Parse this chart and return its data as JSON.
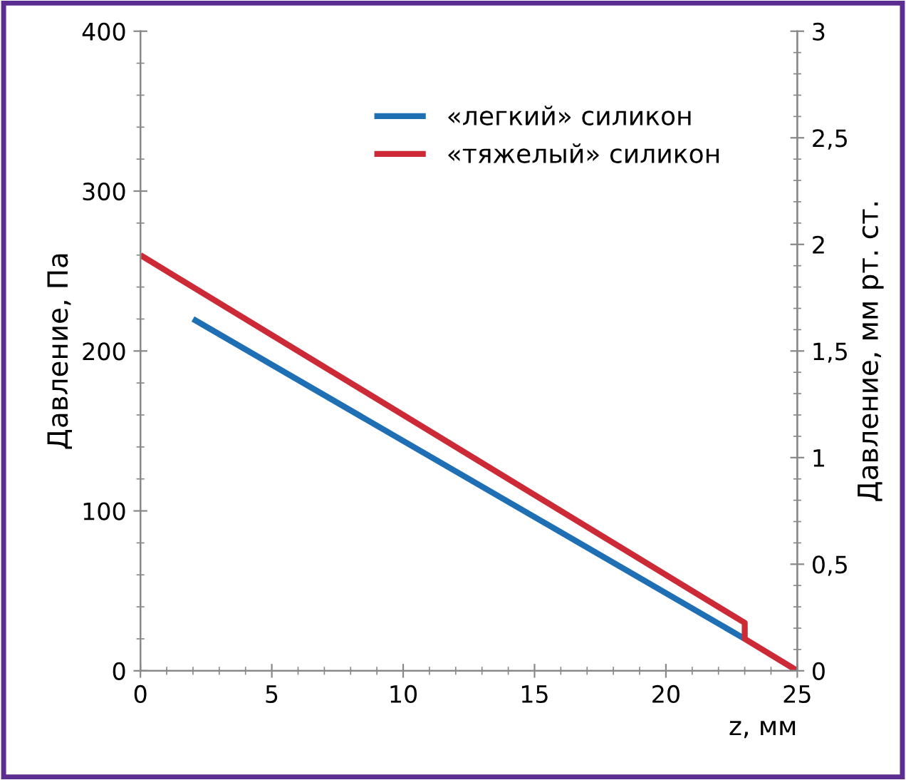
{
  "chart_data": {
    "type": "line",
    "xlabel": "z, мм",
    "ylabel": "Давление, Па",
    "y2label": "Давление, мм рт. ст.",
    "xlim": [
      0,
      25
    ],
    "xticks": [
      0,
      5,
      10,
      15,
      20,
      25
    ],
    "ylim": [
      0,
      400
    ],
    "yticks": [
      0,
      100,
      200,
      300,
      400
    ],
    "y2lim": [
      0,
      3
    ],
    "y2ticks": [
      0,
      {
        "value": 0.5,
        "label": "0,5"
      },
      1,
      {
        "value": 1.5,
        "label": "1,5"
      },
      2,
      {
        "value": 2.5,
        "label": "2,5"
      },
      3
    ],
    "grid": false,
    "legend": "top",
    "marker": "none",
    "line_style": "solid",
    "series": [
      {
        "name": "«легкий» силикон",
        "color": "#1f6fb5",
        "x": [
          2,
          23
        ],
        "values": [
          220,
          20
        ]
      },
      {
        "name": "«тяжелый» силикон",
        "color": "#cc2a36",
        "x": [
          0,
          23,
          23,
          25
        ],
        "values": [
          260,
          30,
          20,
          0
        ]
      }
    ]
  }
}
